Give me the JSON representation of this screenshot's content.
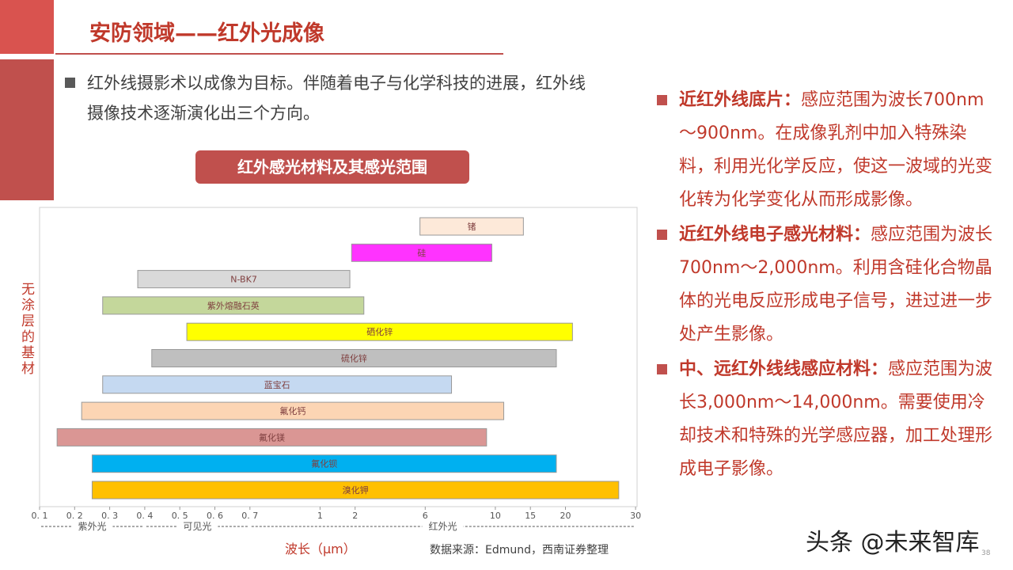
{
  "header": {
    "title": "安防领域——红外光成像"
  },
  "bullet": "红外线摄影术以成像为目标。伴随着电子与化学科技的进展，红外线摄像技术逐渐演化出三个方向。",
  "chart_data": {
    "type": "range-bar",
    "title": "红外感光材料及其感光范围",
    "y_label": "无涂层的基材",
    "x_label": "波长（μm）",
    "bars": [
      {
        "name": "锗",
        "color": "#fde9d9",
        "values": [
          5.7,
          14
        ]
      },
      {
        "name": "硅",
        "color": "#ff33ff",
        "values": [
          1.9,
          9.8
        ]
      },
      {
        "name": "N-BK7",
        "color": "#d9d9d9",
        "values": [
          0.38,
          1.85
        ]
      },
      {
        "name": "紫外熔融石英",
        "color": "#c4d79b",
        "values": [
          0.28,
          2.5
        ]
      },
      {
        "name": "硒化锌",
        "color": "#ffff00",
        "values": [
          0.52,
          21
        ]
      },
      {
        "name": "硫化锌",
        "color": "#bfbfbf",
        "values": [
          0.42,
          18.7
        ]
      },
      {
        "name": "蓝宝石",
        "color": "#c5d9f1",
        "values": [
          0.28,
          7.5
        ]
      },
      {
        "name": "氟化钙",
        "color": "#fcd5b4",
        "values": [
          0.22,
          11.2
        ]
      },
      {
        "name": "氟化镁",
        "color": "#da9694",
        "values": [
          0.15,
          9.5
        ]
      },
      {
        "name": "氟化钡",
        "color": "#00b0f0",
        "values": [
          0.25,
          18.7
        ]
      },
      {
        "name": "溴化钾",
        "color": "#ffc000",
        "values": [
          0.25,
          27.6
        ]
      }
    ],
    "xlim": [
      0.1,
      30
    ],
    "xticks": [
      {
        "value": 0.1,
        "label": "0. 1"
      },
      {
        "value": 0.2,
        "label": "0. 2"
      },
      {
        "value": 0.3,
        "label": "0. 3"
      },
      {
        "value": 0.4,
        "label": "0. 4"
      },
      {
        "value": 0.5,
        "label": "0. 5"
      },
      {
        "value": 0.6,
        "label": "0. 6"
      },
      {
        "value": 0.7,
        "label": "0. 7"
      },
      1,
      2,
      6,
      10,
      15,
      20,
      30
    ],
    "regions": [
      "紫外光",
      "可见光",
      "红外光"
    ]
  },
  "side_points": [
    {
      "term": "近红外线底片：",
      "text": "感应范围为波长700nm～900nm。在成像乳剂中加入特殊染料，利用光化学反应，使这一波域的光变化转为化学变化从而形成影像。"
    },
    {
      "term": "近红外线电子感光材料：",
      "text": "感应范围为波长700nm～2,000nm。利用含硅化合物晶体的光电反应形成电子信号，进过进一步处产生影像。"
    },
    {
      "term": "中、远红外线线感应材料：",
      "text": "感应范围为波长3,000nm～14,000nm。需要使用冷却技术和特殊的光学感应器，加工处理形成电子影像。"
    }
  ],
  "source": "数据来源：Edmund，西南证券整理",
  "watermark": "头条 @未来智库",
  "page_number": "38"
}
